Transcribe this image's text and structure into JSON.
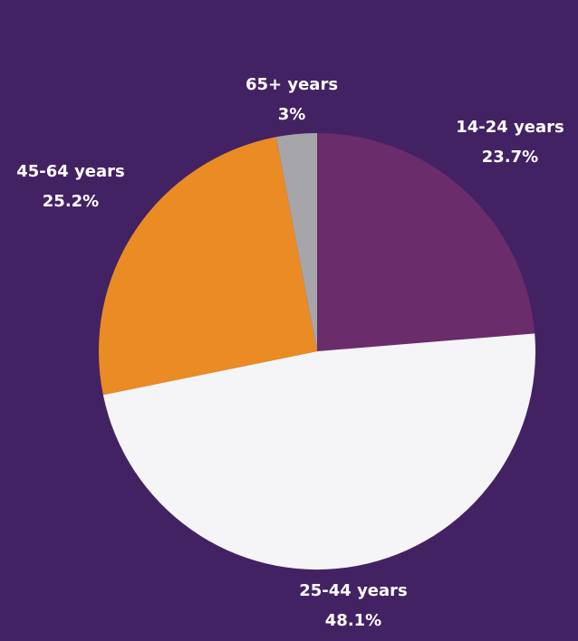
{
  "chart_data": {
    "type": "pie",
    "title": "",
    "start_angle": "12 o'clock, clockwise",
    "slices": [
      {
        "label": "14-24 years",
        "value": 23.7,
        "value_label": "23.7%",
        "color": "#6a2c6a"
      },
      {
        "label": "25-44 years",
        "value": 48.1,
        "value_label": "48.1%",
        "color": "#f5f4f6"
      },
      {
        "label": "45-64 years",
        "value": 25.2,
        "value_label": "25.2%",
        "color": "#ea8c23"
      },
      {
        "label": "65+ years",
        "value": 3,
        "value_label": "3%",
        "color": "#a6a6aa"
      }
    ],
    "background_color": "#432264",
    "label_color": "#ffffff"
  }
}
